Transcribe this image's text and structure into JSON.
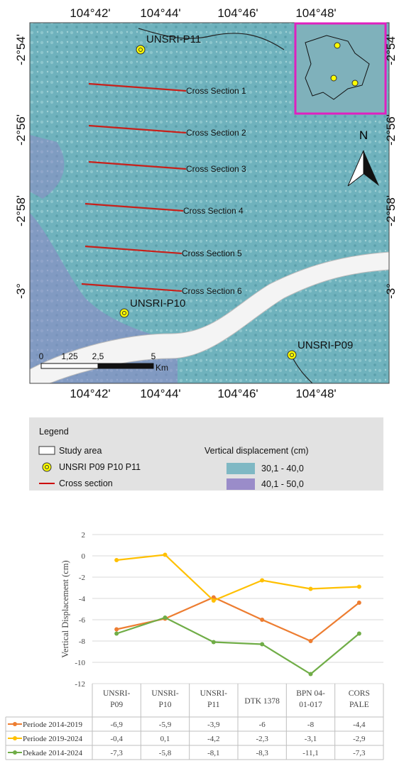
{
  "map": {
    "top_labels": [
      "104°42'",
      "104°44'",
      "104°46'",
      "104°48'"
    ],
    "bottom_labels": [
      "104°42'",
      "104°44'",
      "104°46'",
      "104°48'"
    ],
    "left_labels": [
      "-2°54'",
      "-2°56'",
      "-2°58'",
      "-3°"
    ],
    "right_labels": [
      "-2°54'",
      "-2°56'",
      "-2°58'",
      "-3°"
    ],
    "points": [
      "UNSRI-P11",
      "UNSRI-P10",
      "UNSRI-P09"
    ],
    "cross_sections": [
      "Cross Section 1",
      "Cross Section 2",
      "Cross Section 3",
      "Cross Section 4",
      "Cross Section 5",
      "Cross Section 6"
    ],
    "north": "N",
    "scale_labels": [
      "0",
      "1,25",
      "2,5",
      "5"
    ],
    "scale_unit": "Km"
  },
  "legend": {
    "title": "Legend",
    "study_area": "Study area",
    "points": "UNSRI P09 P10 P11",
    "cross_section": "Cross section",
    "displacement_title": "Vertical displacement (cm)",
    "classes": [
      {
        "label": "30,1 - 40,0",
        "color": "#7fb8c4"
      },
      {
        "label": "40,1 - 50,0",
        "color": "#9a8cc9"
      }
    ]
  },
  "chart_data": {
    "type": "line",
    "y_label": "Vertical Displacement (cm)",
    "categories": [
      "UNSRI-P09",
      "UNSRI-P10",
      "UNSRI-P11",
      "DTK 1378",
      "BPN 04-01-017",
      "CORS PALE"
    ],
    "series": [
      {
        "name": "Periode 2014-2019",
        "color": "#ed7d31",
        "values": [
          -6.9,
          -5.9,
          -3.9,
          -6,
          -8,
          -4.4
        ],
        "value_labels": [
          "-6,9",
          "-5,9",
          "-3,9",
          "-6",
          "-8",
          "-4,4"
        ]
      },
      {
        "name": "Periode 2019-2024",
        "color": "#ffc000",
        "values": [
          -0.4,
          0.1,
          -4.2,
          -2.3,
          -3.1,
          -2.9
        ],
        "value_labels": [
          "-0,4",
          "0,1",
          "-4,2",
          "-2,3",
          "-3,1",
          "-2,9"
        ]
      },
      {
        "name": "Dekade 2014-2024",
        "color": "#70ad47",
        "values": [
          -7.3,
          -5.8,
          -8.1,
          -8.3,
          -11.1,
          -7.3
        ],
        "value_labels": [
          "-7,3",
          "-5,8",
          "-8,1",
          "-8,3",
          "-11,1",
          "-7,3"
        ]
      }
    ],
    "ylim": [
      -12,
      2
    ],
    "yticks": [
      -12,
      -10,
      -8,
      -6,
      -4,
      -2,
      0,
      2
    ],
    "grid": true
  }
}
